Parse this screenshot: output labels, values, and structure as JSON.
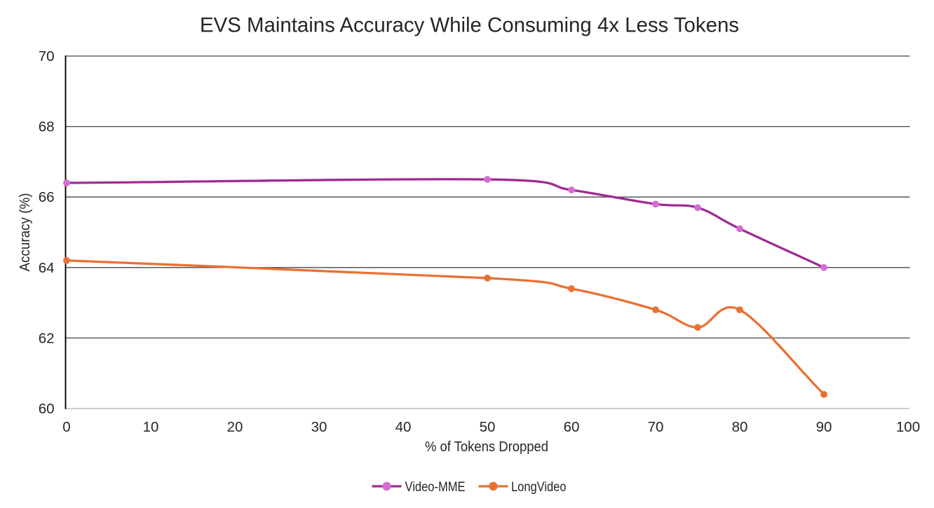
{
  "page": {
    "background": "#ffffff"
  },
  "chart_data": {
    "type": "line",
    "title": "EVS Maintains Accuracy While Consuming 4x Less Tokens",
    "xlabel": "% of Tokens Dropped",
    "ylabel": "Accuracy (%)",
    "xlim": [
      0,
      100
    ],
    "ylim": [
      60,
      70
    ],
    "x_ticks": [
      0,
      10,
      20,
      30,
      40,
      50,
      60,
      70,
      80,
      90,
      100
    ],
    "y_ticks": [
      60,
      62,
      64,
      66,
      68,
      70
    ],
    "grid": "horizontal",
    "smooth_lines": true,
    "legend_position": "bottom-center",
    "series": [
      {
        "name": "Video-MME",
        "x": [
          0,
          50,
          60,
          70,
          75,
          80,
          90
        ],
        "y": [
          66.4,
          66.5,
          66.2,
          65.8,
          65.7,
          65.1,
          64.0
        ],
        "line_color": "#A02B93",
        "marker_color": "#D66CD2"
      },
      {
        "name": "LongVideo",
        "x": [
          0,
          50,
          60,
          70,
          75,
          80,
          90
        ],
        "y": [
          64.2,
          63.7,
          63.4,
          62.8,
          62.3,
          62.8,
          60.4
        ],
        "line_color": "#E97132",
        "marker_color": "#E97132"
      }
    ],
    "style_colors": {
      "title_text": "#262626",
      "axis_text": "#262626",
      "gridline": "#464646",
      "y_axis_line": "#000000",
      "x_axis_line": "#BFBFBF"
    }
  }
}
